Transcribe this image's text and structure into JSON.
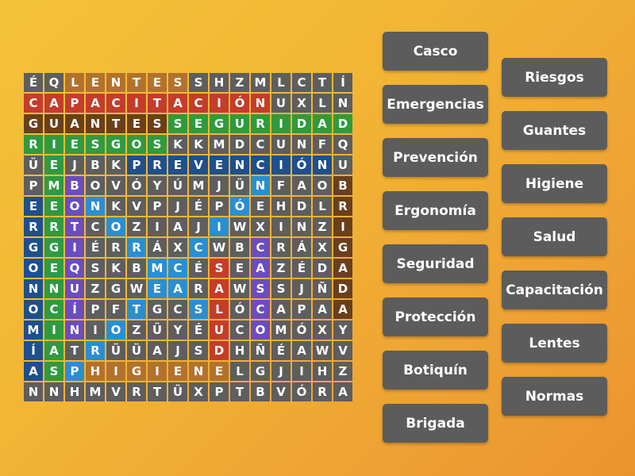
{
  "grid": [
    "ÉQLENTESSHZMLCTÍ",
    "CAPACITACIÓNUXLN",
    "GUANTESSEGURIDAD",
    "RIESGOSKKMDCUNFQ",
    "ÜEJBKPREVENCIÓNU",
    "PMBOVÓYÚMJÜNFAOB",
    "EEONKVPJÉPÓEHDLR",
    "RRTCOZIAJIWXINZI",
    "GGIÉRRÁXCWBCRÁXG",
    "OEQSKBMCÉSEAZÉDA",
    "NNUZGWEARAWSSJÑD",
    "OCÍPFTGCSLÓCAPAA",
    "MINIOZÜYÉUCOMÓXY",
    "ÍATRÜÜAJSDHÑÉAWV",
    "ASPHIGIENELGJIHZ",
    "NNHMVRTÜXPTBVÓRA"
  ],
  "found_words": [
    {
      "word": "LENTES",
      "row": 0,
      "col": 2,
      "dir": [
        0,
        1
      ],
      "color": "#b3722b"
    },
    {
      "word": "CAPACITACIÓN",
      "row": 1,
      "col": 0,
      "dir": [
        0,
        1
      ],
      "color": "#c43d2a"
    },
    {
      "word": "GUANTES",
      "row": 2,
      "col": 0,
      "dir": [
        0,
        1
      ],
      "color": "#6a3f1c"
    },
    {
      "word": "SEGURIDAD",
      "row": 2,
      "col": 7,
      "dir": [
        0,
        1
      ],
      "color": "#2f9a40"
    },
    {
      "word": "RIESGOS",
      "row": 3,
      "col": 0,
      "dir": [
        0,
        1
      ],
      "color": "#2f9a40"
    },
    {
      "word": "PREVENCIÓN",
      "row": 4,
      "col": 5,
      "dir": [
        0,
        1
      ],
      "color": "#1f4f8d"
    },
    {
      "word": "EMERGENCIAS",
      "row": 4,
      "col": 1,
      "dir": [
        1,
        0
      ],
      "color": "#2f9a40"
    },
    {
      "word": "ERGONOMÍA",
      "row": 6,
      "col": 0,
      "dir": [
        1,
        0
      ],
      "color": "#1f4f8d"
    },
    {
      "word": "BOTIQUÍN",
      "row": 5,
      "col": 2,
      "dir": [
        1,
        0
      ],
      "color": "#6a4dbf"
    },
    {
      "word": "BRIGADA",
      "row": 5,
      "col": 15,
      "dir": [
        1,
        0
      ],
      "color": "#6a3f1c"
    },
    {
      "word": "PROTECCIÓN",
      "row": 14,
      "col": 2,
      "dir": [
        -1,
        1
      ],
      "color": "#2a8ed2"
    },
    {
      "word": "NORMAS",
      "row": 6,
      "col": 3,
      "dir": [
        1,
        1
      ],
      "color": "#2a8ed2"
    },
    {
      "word": "SALUD",
      "row": 9,
      "col": 9,
      "dir": [
        1,
        0
      ],
      "color": "#c43d2a"
    },
    {
      "word": "CASCO",
      "row": 8,
      "col": 11,
      "dir": [
        1,
        0
      ],
      "color": "#6a4dbf"
    },
    {
      "word": "HIGIENE",
      "row": 14,
      "col": 3,
      "dir": [
        0,
        1
      ],
      "color": "#b3722b"
    }
  ],
  "cell_color": "#5e5e5e",
  "word_list_left": [
    "Casco",
    "Emergencias",
    "Prevención",
    "Ergonomía",
    "Seguridad",
    "Protección",
    "Botiquín",
    "Brigada"
  ],
  "word_list_right": [
    "Riesgos",
    "Guantes",
    "Higiene",
    "Salud",
    "Capacitación",
    "Lentes",
    "Normas"
  ]
}
